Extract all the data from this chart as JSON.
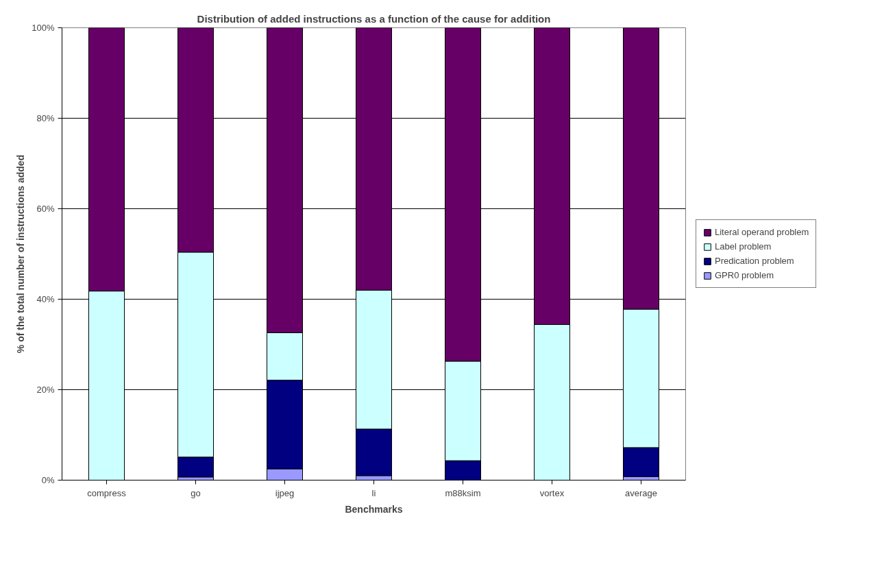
{
  "chart_data": {
    "type": "bar",
    "stacked": true,
    "title": "Distribution of added instructions as a function of the cause for addition",
    "xlabel": "Benchmarks",
    "ylabel": "% of the total number of instructions added",
    "categories": [
      "compress",
      "go",
      "ijpeg",
      "li",
      "m88ksim",
      "vortex",
      "average"
    ],
    "series": [
      {
        "name": "GPR0 problem",
        "color": "#9999ff",
        "values": [
          0,
          0.7,
          2.5,
          1.0,
          null,
          0,
          0.8
        ]
      },
      {
        "name": "Predication problem",
        "color": "#000080",
        "values": [
          null,
          4.4,
          19.6,
          10.3,
          4.3,
          null,
          6.4
        ]
      },
      {
        "name": "Label problem",
        "color": "#ccffff",
        "values": [
          41.8,
          45.3,
          10.5,
          30.7,
          22.0,
          34.4,
          30.6
        ]
      },
      {
        "name": "Literal operand problem",
        "color": "#660066",
        "values": [
          58.2,
          49.6,
          67.4,
          58.0,
          73.7,
          65.6,
          62.2
        ]
      }
    ],
    "ylim": [
      0,
      100
    ],
    "yticks": [
      {
        "value": 0,
        "label": "0%"
      },
      {
        "value": 20,
        "label": "20%"
      },
      {
        "value": 40,
        "label": "40%"
      },
      {
        "value": 60,
        "label": "60%"
      },
      {
        "value": 80,
        "label": "80%"
      },
      {
        "value": 100,
        "label": "100%"
      }
    ],
    "grid": "y",
    "legend": "right"
  }
}
